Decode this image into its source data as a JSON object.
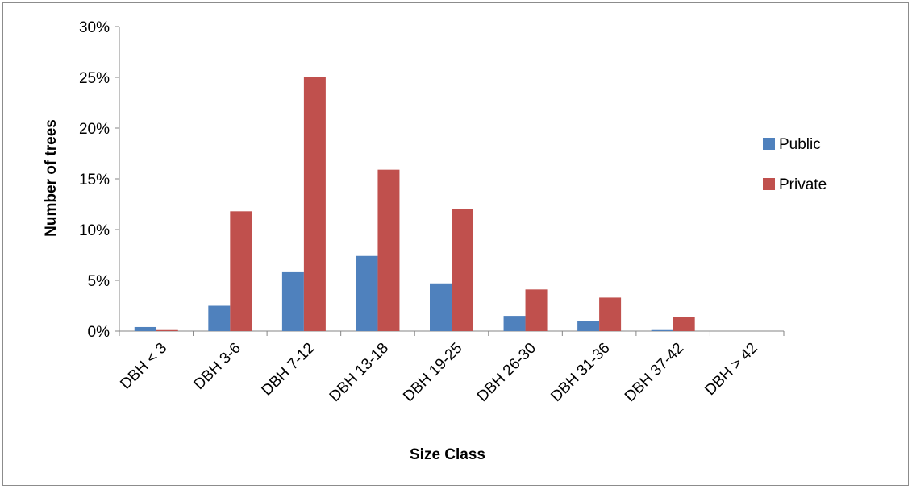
{
  "chart_data": {
    "type": "bar",
    "title": "",
    "xlabel": "Size Class",
    "ylabel": "Number of trees",
    "categories": [
      "DBH < 3",
      "DBH 3-6",
      "DBH 7-12",
      "DBH 13-18",
      "DBH 19-25",
      "DBH 26-30",
      "DBH 31-36",
      "DBH 37-42",
      "DBH > 42"
    ],
    "series": [
      {
        "name": "Public",
        "color": "#4f81bd",
        "values": [
          0.4,
          2.5,
          5.8,
          7.4,
          4.7,
          1.5,
          1.0,
          0.1,
          0.0
        ]
      },
      {
        "name": "Private",
        "color": "#c0504d",
        "values": [
          0.1,
          11.8,
          25.0,
          15.9,
          12.0,
          4.1,
          3.3,
          1.4,
          0.0
        ]
      }
    ],
    "ylim": [
      0,
      30
    ],
    "yticks": [
      "0%",
      "5%",
      "10%",
      "15%",
      "20%",
      "25%",
      "30%"
    ],
    "grid": false,
    "legend_position": "right"
  }
}
